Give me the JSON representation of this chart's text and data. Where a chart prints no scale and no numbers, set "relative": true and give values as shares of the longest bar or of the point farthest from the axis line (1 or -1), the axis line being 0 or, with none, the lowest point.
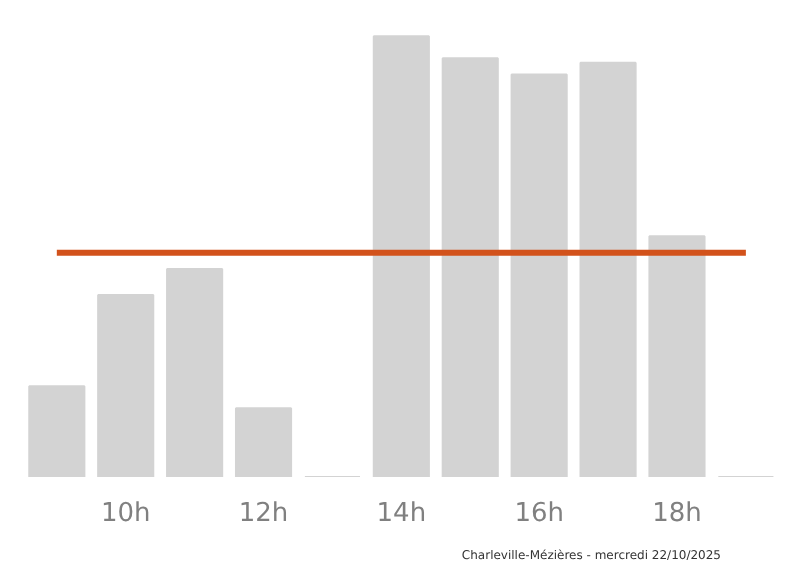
{
  "chart_data": {
    "type": "bar",
    "relative": true,
    "categories": [
      null,
      "10h",
      null,
      "12h",
      null,
      "14h",
      null,
      "16h",
      null,
      "18h",
      null
    ],
    "values": [
      0.206,
      0.413,
      0.472,
      0.156,
      0,
      1,
      0.95,
      0.913,
      0.94,
      0.546,
      0
    ],
    "color": "#d3d3d3",
    "ref_lines": [
      {
        "axis": "y",
        "value": 0.509,
        "label": null,
        "color": "#d2521b"
      }
    ],
    "annotations": [
      "Charleville-Mézières - mercredi 22/10/2025"
    ],
    "grid": false
  }
}
